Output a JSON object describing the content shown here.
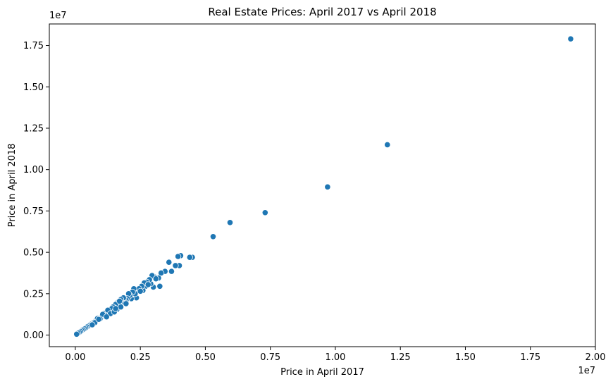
{
  "chart_data": {
    "type": "scatter",
    "title": "Real Estate Prices: April 2017 vs April 2018",
    "xlabel": "Price in April 2017",
    "ylabel": "Price in April 2018",
    "x_scale_label": "1e7",
    "y_scale_label": "1e7",
    "xlim": [
      -1000000,
      20000000
    ],
    "ylim": [
      -700000,
      18800000
    ],
    "x_ticks": [
      0,
      2500000,
      5000000,
      7500000,
      10000000,
      12500000,
      15000000,
      17500000,
      20000000
    ],
    "x_tick_labels": [
      "0.00",
      "0.25",
      "0.50",
      "0.75",
      "1.00",
      "1.25",
      "1.50",
      "1.75",
      "2.00"
    ],
    "y_ticks": [
      0,
      2500000,
      5000000,
      7500000,
      10000000,
      12500000,
      15000000,
      17500000
    ],
    "y_tick_labels": [
      "0.00",
      "0.25",
      "0.50",
      "0.75",
      "1.00",
      "1.25",
      "1.50",
      "1.75"
    ],
    "grid": false,
    "legend": "none",
    "marker_color": "#1f77b4",
    "points": [
      [
        19050000,
        17900000
      ],
      [
        12000000,
        11500000
      ],
      [
        9700000,
        8950000
      ],
      [
        7300000,
        7400000
      ],
      [
        5950000,
        6800000
      ],
      [
        5300000,
        5950000
      ],
      [
        4500000,
        4700000
      ],
      [
        4400000,
        4700000
      ],
      [
        4050000,
        4800000
      ],
      [
        3950000,
        4750000
      ],
      [
        4000000,
        4200000
      ],
      [
        3850000,
        4200000
      ],
      [
        3700000,
        3850000
      ],
      [
        3600000,
        4400000
      ],
      [
        3450000,
        3850000
      ],
      [
        3300000,
        3750000
      ],
      [
        3250000,
        2950000
      ],
      [
        3200000,
        3450000
      ],
      [
        3050000,
        3500000
      ],
      [
        2950000,
        3600000
      ],
      [
        3000000,
        2900000
      ],
      [
        2900000,
        3100000
      ],
      [
        2850000,
        3350000
      ],
      [
        2750000,
        3200000
      ],
      [
        2700000,
        2950000
      ],
      [
        2650000,
        3150000
      ],
      [
        2600000,
        2700000
      ],
      [
        2550000,
        2950000
      ],
      [
        2450000,
        2800000
      ],
      [
        2350000,
        2250000
      ],
      [
        2300000,
        2500000
      ],
      [
        2250000,
        2800000
      ],
      [
        2200000,
        2600000
      ],
      [
        2150000,
        2200000
      ],
      [
        2100000,
        2400000
      ],
      [
        2050000,
        2500000
      ],
      [
        2000000,
        2200000
      ],
      [
        1950000,
        2100000
      ],
      [
        1900000,
        2000000
      ],
      [
        1850000,
        2250000
      ],
      [
        1800000,
        1950000
      ],
      [
        1750000,
        2150000
      ],
      [
        1700000,
        1800000
      ],
      [
        1650000,
        2000000
      ],
      [
        1600000,
        1750000
      ],
      [
        1550000,
        1850000
      ],
      [
        1500000,
        1650000
      ],
      [
        1450000,
        1700000
      ],
      [
        1400000,
        1550000
      ],
      [
        1350000,
        1500000
      ],
      [
        1300000,
        1450000
      ],
      [
        1250000,
        1350000
      ],
      [
        1200000,
        1400000
      ],
      [
        1150000,
        1250000
      ],
      [
        1100000,
        1300000
      ],
      [
        1050000,
        1150000
      ],
      [
        1000000,
        1100000
      ],
      [
        950000,
        1050000
      ],
      [
        900000,
        1000000
      ],
      [
        850000,
        920000
      ],
      [
        800000,
        870000
      ],
      [
        750000,
        820000
      ],
      [
        700000,
        760000
      ],
      [
        650000,
        700000
      ],
      [
        600000,
        650000
      ],
      [
        550000,
        600000
      ],
      [
        500000,
        540000
      ],
      [
        450000,
        490000
      ],
      [
        400000,
        430000
      ],
      [
        350000,
        380000
      ],
      [
        300000,
        320000
      ],
      [
        250000,
        270000
      ],
      [
        200000,
        215000
      ],
      [
        150000,
        160000
      ],
      [
        100000,
        110000
      ],
      [
        50000,
        55000
      ],
      [
        1600000,
        1550000
      ],
      [
        1400000,
        1600000
      ],
      [
        1250000,
        1500000
      ],
      [
        1150000,
        1200000
      ],
      [
        1050000,
        1250000
      ],
      [
        950000,
        980000
      ],
      [
        850000,
        1000000
      ],
      [
        750000,
        750000
      ],
      [
        1350000,
        1300000
      ],
      [
        1750000,
        1700000
      ],
      [
        1950000,
        1900000
      ],
      [
        2500000,
        2650000
      ],
      [
        2800000,
        3050000
      ],
      [
        3100000,
        3400000
      ],
      [
        1500000,
        1400000
      ],
      [
        1700000,
        2050000
      ],
      [
        650000,
        620000
      ],
      [
        900000,
        950000
      ],
      [
        1200000,
        1100000
      ],
      [
        1550000,
        1600000
      ]
    ]
  }
}
